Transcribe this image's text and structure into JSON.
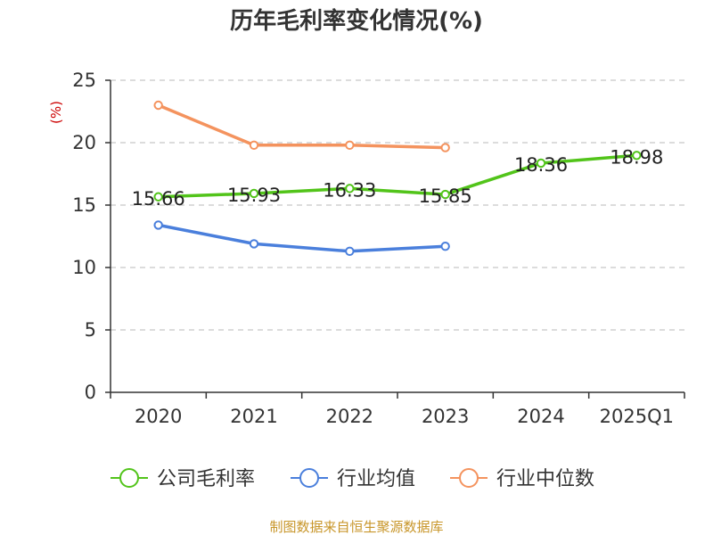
{
  "chart_data": {
    "type": "line",
    "title": "历年毛利率变化情况(%)",
    "ylabel": "(%)",
    "categories": [
      "2020",
      "2021",
      "2022",
      "2023",
      "2024",
      "2025Q1"
    ],
    "ylim": [
      0,
      25
    ],
    "yticks": [
      0,
      5,
      10,
      15,
      20,
      25
    ],
    "grid": true,
    "legend_position": "bottom",
    "series": [
      {
        "name": "公司毛利率",
        "color": "#52c41a",
        "values": [
          15.66,
          15.93,
          16.33,
          15.85,
          18.36,
          18.98
        ],
        "labels": [
          "15.66",
          "15.93",
          "16.33",
          "15.85",
          "18.36",
          "18.98"
        ]
      },
      {
        "name": "行业均值",
        "color": "#4a7fdc",
        "values": [
          13.4,
          11.9,
          11.3,
          11.7,
          null,
          null
        ]
      },
      {
        "name": "行业中位数",
        "color": "#f4935e",
        "values": [
          23.0,
          19.8,
          19.8,
          19.6,
          null,
          null
        ]
      }
    ]
  },
  "source": "制图数据来自恒生聚源数据库"
}
